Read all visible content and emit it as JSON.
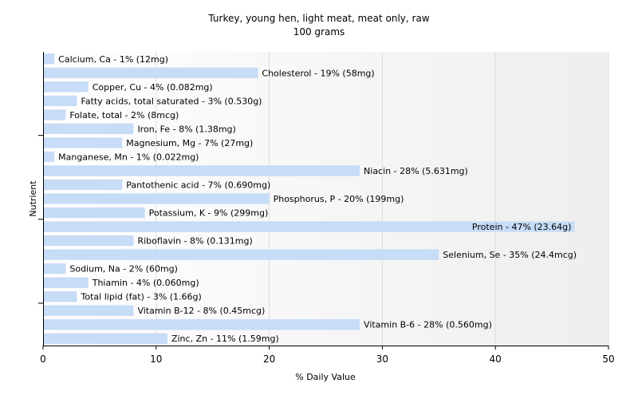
{
  "chart_data": {
    "type": "bar",
    "orientation": "horizontal",
    "title": "Turkey, young hen, light meat, meat only, raw",
    "subtitle": "100 grams",
    "xlabel": "% Daily Value",
    "ylabel": "Nutrient",
    "xlim": [
      0,
      50
    ],
    "xticks": [
      0,
      10,
      20,
      30,
      40,
      50
    ],
    "grid": true,
    "bar_color": "#c6dcf7",
    "categories": [
      "Calcium, Ca",
      "Cholesterol",
      "Copper, Cu",
      "Fatty acids, total saturated",
      "Folate, total",
      "Iron, Fe",
      "Magnesium, Mg",
      "Manganese, Mn",
      "Niacin",
      "Pantothenic acid",
      "Phosphorus, P",
      "Potassium, K",
      "Protein",
      "Riboflavin",
      "Selenium, Se",
      "Sodium, Na",
      "Thiamin",
      "Total lipid (fat)",
      "Vitamin B-12",
      "Vitamin B-6",
      "Zinc, Zn"
    ],
    "values": [
      1,
      19,
      4,
      3,
      2,
      8,
      7,
      1,
      28,
      7,
      20,
      9,
      47,
      8,
      35,
      2,
      4,
      3,
      8,
      28,
      11
    ],
    "labels": [
      "Calcium, Ca - 1% (12mg)",
      "Cholesterol - 19% (58mg)",
      "Copper, Cu - 4% (0.082mg)",
      "Fatty acids, total saturated - 3% (0.530g)",
      "Folate, total - 2% (8mcg)",
      "Iron, Fe - 8% (1.38mg)",
      "Magnesium, Mg - 7% (27mg)",
      "Manganese, Mn - 1% (0.022mg)",
      "Niacin - 28% (5.631mg)",
      "Pantothenic acid - 7% (0.690mg)",
      "Phosphorus, P - 20% (199mg)",
      "Potassium, K - 9% (299mg)",
      "Protein - 47% (23.64g)",
      "Riboflavin - 8% (0.131mg)",
      "Selenium, Se - 35% (24.4mcg)",
      "Sodium, Na - 2% (60mg)",
      "Thiamin - 4% (0.060mg)",
      "Total lipid (fat) - 3% (1.66g)",
      "Vitamin B-12 - 8% (0.45mcg)",
      "Vitamin B-6 - 28% (0.560mg)",
      "Zinc, Zn - 11% (1.59mg)"
    ]
  }
}
